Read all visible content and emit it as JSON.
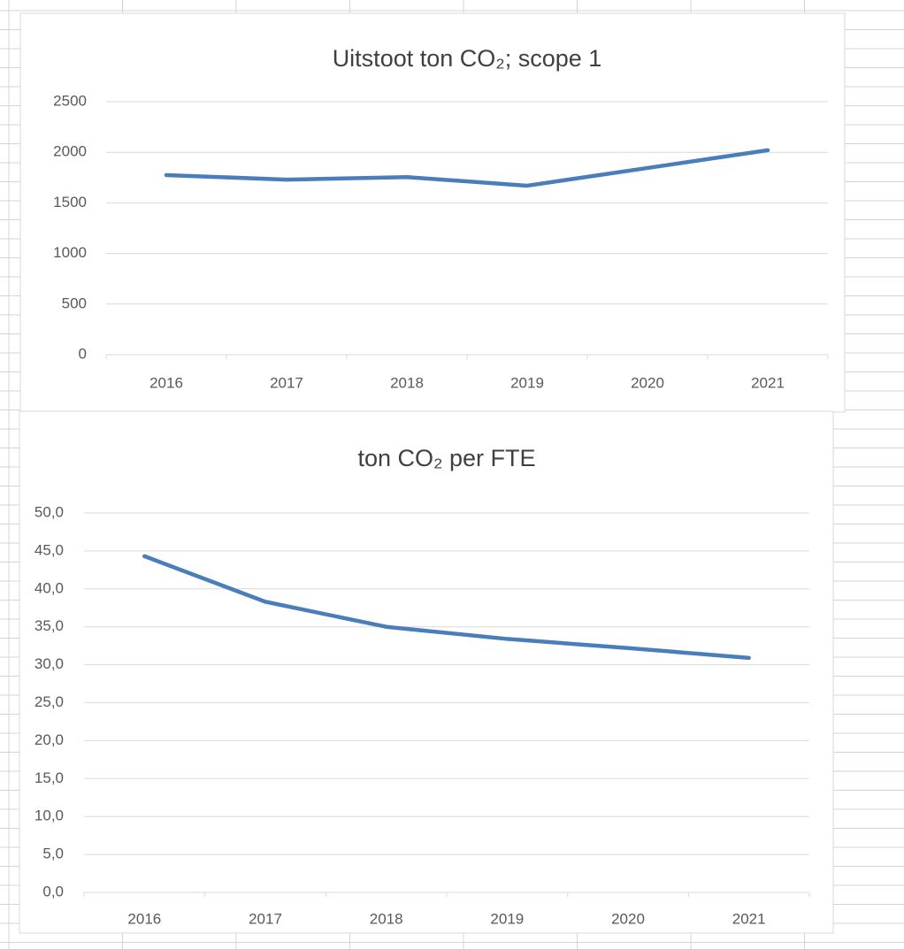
{
  "chart_data": [
    {
      "type": "line",
      "title": "Uitstoot ton CO₂; scope 1",
      "categories": [
        "2016",
        "2017",
        "2018",
        "2019",
        "2020",
        "2021"
      ],
      "series": [
        {
          "name": "Uitstoot",
          "color": "#4a7ebb",
          "values": [
            1775,
            1730,
            1755,
            1670,
            1845,
            2020
          ]
        }
      ],
      "ylim": [
        0,
        2500
      ],
      "yticks": [
        0,
        500,
        1000,
        1500,
        2000,
        2500
      ],
      "grid": true
    },
    {
      "type": "line",
      "title": "ton CO₂ per FTE",
      "categories": [
        "2016",
        "2017",
        "2018",
        "2019",
        "2020",
        "2021"
      ],
      "series": [
        {
          "name": "per FTE",
          "color": "#4a7ebb",
          "values": [
            44.3,
            38.3,
            35.0,
            33.4,
            32.2,
            30.9
          ]
        }
      ],
      "ylim": [
        0,
        50
      ],
      "yticks": [
        {
          "value": 0,
          "label": "0,0"
        },
        {
          "value": 5,
          "label": "5,0"
        },
        {
          "value": 10,
          "label": "10,0"
        },
        {
          "value": 15,
          "label": "15,0"
        },
        {
          "value": 20,
          "label": "20,0"
        },
        {
          "value": 25,
          "label": "25,0"
        },
        {
          "value": 30,
          "label": "30,0"
        },
        {
          "value": 35,
          "label": "35,0"
        },
        {
          "value": 40,
          "label": "40,0"
        },
        {
          "value": 45,
          "label": "45,0"
        },
        {
          "value": 50,
          "label": "50,0"
        }
      ],
      "grid": true
    }
  ]
}
